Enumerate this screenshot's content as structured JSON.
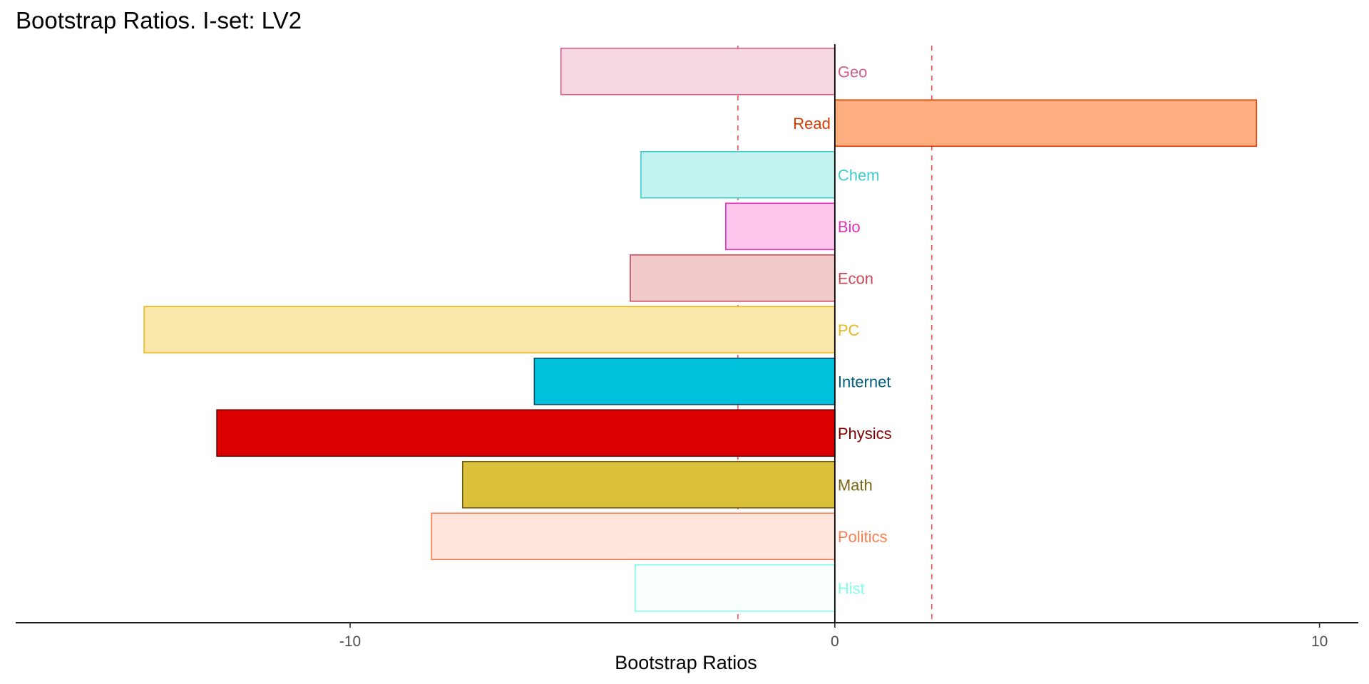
{
  "chart_data": {
    "type": "bar",
    "orientation": "horizontal",
    "title": "Bootstrap Ratios. I-set: LV2",
    "xlabel": "Bootstrap Ratios",
    "ylabel": "",
    "xlim": [
      -16.9,
      10.8
    ],
    "xticks": [
      -10,
      0,
      10
    ],
    "xtick_labels": [
      "-10",
      "0",
      "10"
    ],
    "threshold_lines": [
      -2,
      2
    ],
    "threshold_color": "#e75a5a",
    "grid": false,
    "legend": "none",
    "categories": [
      "Geo",
      "Read",
      "Chem",
      "Bio",
      "Econ",
      "PC",
      "Internet",
      "Physics",
      "Math",
      "Politics",
      "Hist"
    ],
    "values": [
      -5.65,
      8.7,
      -4.0,
      -2.25,
      -4.22,
      -14.25,
      -6.2,
      -12.75,
      -7.68,
      -8.32,
      -4.12
    ],
    "bar_fills": [
      "#f5d7e1",
      "#ffae80",
      "#c2f2ef",
      "#ffc6ee",
      "#f2cacb",
      "#f9e6ab",
      "#00c1dc",
      "#dc0000",
      "#dbc03b",
      "#ffe5dc",
      "#f8fffd"
    ],
    "bar_strokes": [
      "#d15e8a",
      "#e63c00",
      "#40cccc",
      "#e62eb8",
      "#c84a58",
      "#e8b81a",
      "#004d66",
      "#660000",
      "#6b5a13",
      "#ff7d4d",
      "#80ffe6"
    ],
    "label_colors": [
      "#d15e8a",
      "#d63a00",
      "#40cccc",
      "#e62eb8",
      "#c84a58",
      "#e8b81a",
      "#005c80",
      "#800000",
      "#7a6614",
      "#ff7d4d",
      "#80ffe6"
    ]
  }
}
